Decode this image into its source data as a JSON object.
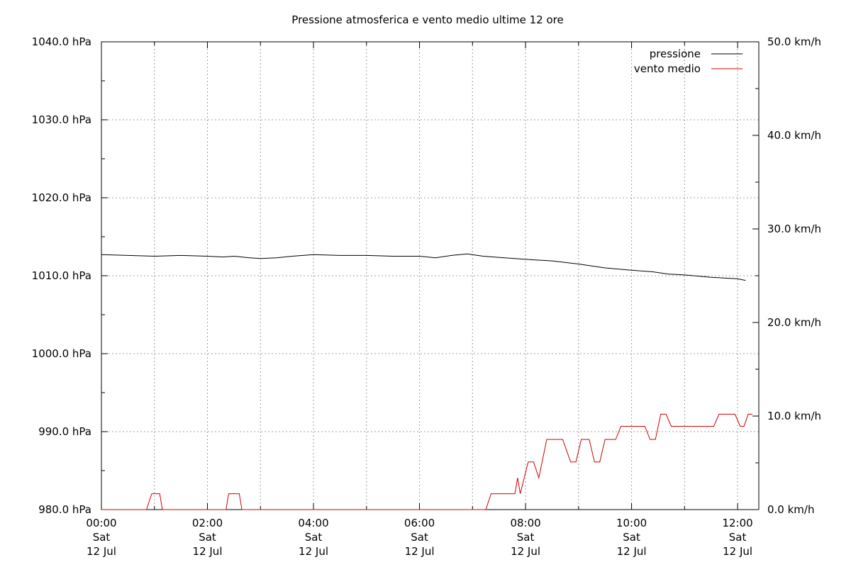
{
  "chart_data": {
    "type": "line",
    "title": "Pressione atmosferica e vento medio ultime 12 ore",
    "x_ticks": [
      {
        "time": "00:00",
        "day": "Sat",
        "date": "12 Jul",
        "hours": 0
      },
      {
        "time": "02:00",
        "day": "Sat",
        "date": "12 Jul",
        "hours": 2
      },
      {
        "time": "04:00",
        "day": "Sat",
        "date": "12 Jul",
        "hours": 4
      },
      {
        "time": "06:00",
        "day": "Sat",
        "date": "12 Jul",
        "hours": 6
      },
      {
        "time": "08:00",
        "day": "Sat",
        "date": "12 Jul",
        "hours": 8
      },
      {
        "time": "10:00",
        "day": "Sat",
        "date": "12 Jul",
        "hours": 10
      },
      {
        "time": "12:00",
        "day": "Sat",
        "date": "12 Jul",
        "hours": 12
      }
    ],
    "xlim_hours": [
      0,
      12.4
    ],
    "y_left": {
      "unit": "hPa",
      "range": [
        980,
        1040
      ],
      "ticks": [
        "980.0 hPa",
        "990.0 hPa",
        "1000.0 hPa",
        "1010.0 hPa",
        "1020.0 hPa",
        "1030.0 hPa",
        "1040.0 hPa"
      ],
      "tick_values": [
        980,
        990,
        1000,
        1010,
        1020,
        1030,
        1040
      ]
    },
    "y_right": {
      "unit": "km/h",
      "range": [
        0,
        50
      ],
      "ticks": [
        "0.0 km/h",
        "10.0 km/h",
        "20.0 km/h",
        "30.0 km/h",
        "40.0 km/h",
        "50.0 km/h"
      ],
      "tick_values": [
        0,
        10,
        20,
        30,
        40,
        50
      ]
    },
    "grid": true,
    "legend_position": "top-right",
    "series": [
      {
        "name": "pressione",
        "axis": "left",
        "color": "#000000",
        "points": [
          [
            0.0,
            1012.7
          ],
          [
            0.5,
            1012.6
          ],
          [
            1.0,
            1012.5
          ],
          [
            1.5,
            1012.6
          ],
          [
            2.0,
            1012.5
          ],
          [
            2.3,
            1012.4
          ],
          [
            2.5,
            1012.5
          ],
          [
            2.8,
            1012.3
          ],
          [
            3.0,
            1012.2
          ],
          [
            3.3,
            1012.3
          ],
          [
            3.6,
            1012.5
          ],
          [
            4.0,
            1012.7
          ],
          [
            4.5,
            1012.6
          ],
          [
            5.0,
            1012.6
          ],
          [
            5.5,
            1012.5
          ],
          [
            6.0,
            1012.5
          ],
          [
            6.3,
            1012.3
          ],
          [
            6.6,
            1012.6
          ],
          [
            6.9,
            1012.8
          ],
          [
            7.2,
            1012.5
          ],
          [
            7.6,
            1012.3
          ],
          [
            8.0,
            1012.1
          ],
          [
            8.5,
            1011.9
          ],
          [
            9.0,
            1011.5
          ],
          [
            9.5,
            1011.0
          ],
          [
            10.0,
            1010.7
          ],
          [
            10.4,
            1010.5
          ],
          [
            10.7,
            1010.2
          ],
          [
            11.0,
            1010.1
          ],
          [
            11.5,
            1009.8
          ],
          [
            12.0,
            1009.6
          ],
          [
            12.15,
            1009.4
          ]
        ]
      },
      {
        "name": "vento medio",
        "axis": "right",
        "color": "#cc0000",
        "points": [
          [
            0.0,
            0
          ],
          [
            0.85,
            0
          ],
          [
            0.95,
            1.7
          ],
          [
            1.1,
            1.7
          ],
          [
            1.15,
            0
          ],
          [
            2.35,
            0
          ],
          [
            2.4,
            1.7
          ],
          [
            2.6,
            1.7
          ],
          [
            2.65,
            0
          ],
          [
            7.25,
            0
          ],
          [
            7.35,
            1.7
          ],
          [
            7.8,
            1.7
          ],
          [
            7.85,
            3.4
          ],
          [
            7.9,
            1.7
          ],
          [
            8.05,
            5.1
          ],
          [
            8.15,
            5.1
          ],
          [
            8.25,
            3.4
          ],
          [
            8.4,
            7.5
          ],
          [
            8.7,
            7.5
          ],
          [
            8.85,
            5.1
          ],
          [
            8.95,
            5.1
          ],
          [
            9.05,
            7.5
          ],
          [
            9.2,
            7.5
          ],
          [
            9.3,
            5.1
          ],
          [
            9.4,
            5.1
          ],
          [
            9.5,
            7.5
          ],
          [
            9.7,
            7.5
          ],
          [
            9.8,
            8.9
          ],
          [
            10.25,
            8.9
          ],
          [
            10.35,
            7.5
          ],
          [
            10.45,
            7.5
          ],
          [
            10.55,
            10.2
          ],
          [
            10.65,
            10.2
          ],
          [
            10.75,
            8.9
          ],
          [
            11.55,
            8.9
          ],
          [
            11.65,
            10.2
          ],
          [
            11.95,
            10.2
          ],
          [
            12.05,
            8.9
          ],
          [
            12.12,
            8.9
          ],
          [
            12.2,
            10.2
          ],
          [
            12.28,
            10.2
          ]
        ]
      }
    ]
  }
}
